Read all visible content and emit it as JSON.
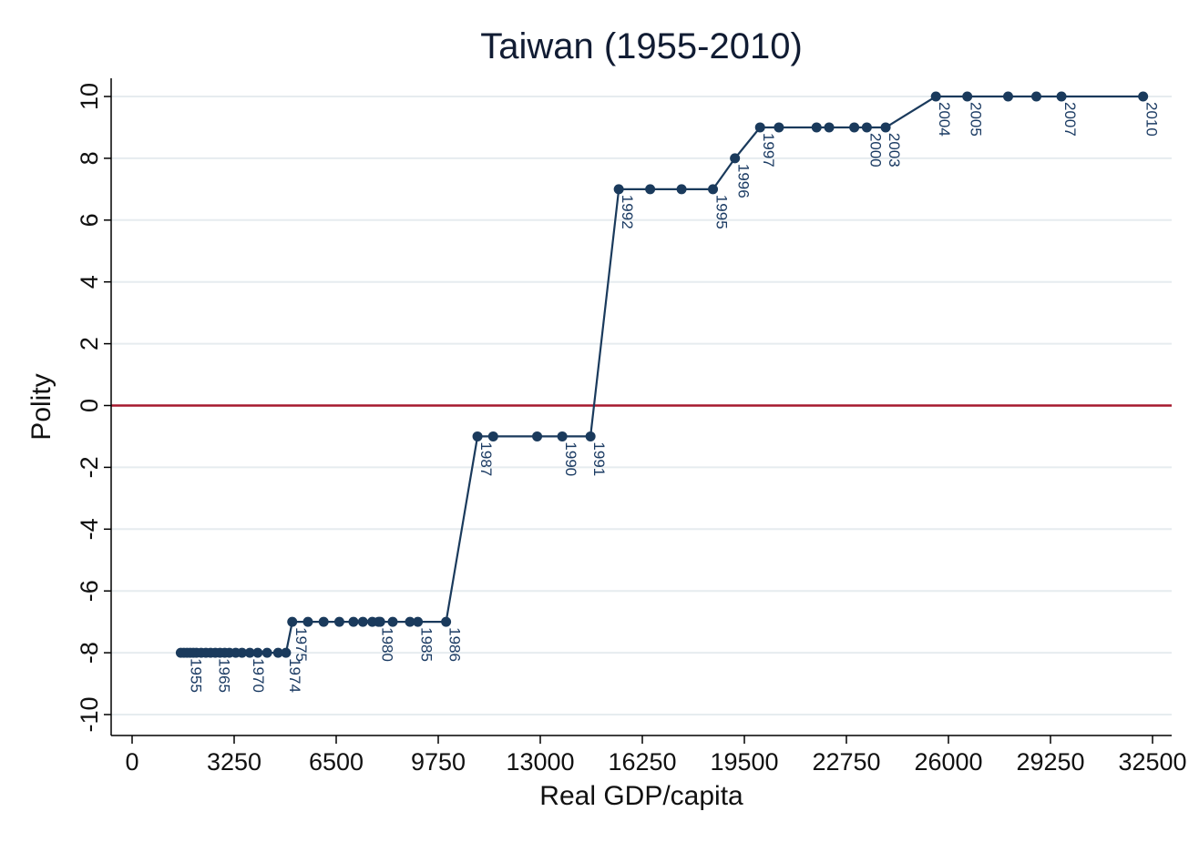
{
  "chart_data": {
    "type": "line",
    "title": "Taiwan (1955-2010)",
    "xlabel": "Real GDP/capita",
    "ylabel": "Polity",
    "xlim": [
      0,
      32500
    ],
    "ylim": [
      -10,
      10
    ],
    "xticks": [
      0,
      3250,
      6500,
      9750,
      13000,
      16250,
      19500,
      22750,
      26000,
      29250,
      32500
    ],
    "yticks": [
      -10,
      -8,
      -6,
      -4,
      -2,
      0,
      2,
      4,
      6,
      8,
      10
    ],
    "grid": "horizontal",
    "reference_line": {
      "y": 0,
      "color": "#a6192e"
    },
    "line_color": "#1a3a5c",
    "x": [
      1550,
      1650,
      1750,
      1850,
      1950,
      2050,
      2200,
      2350,
      2500,
      2650,
      2800,
      2950,
      3100,
      3300,
      3500,
      3750,
      4000,
      4300,
      4650,
      4900,
      5100,
      5600,
      6100,
      6600,
      7050,
      7350,
      7650,
      7850,
      7900,
      8300,
      8850,
      9100,
      10000,
      11000,
      11500,
      12900,
      13700,
      14600,
      15500,
      16500,
      17500,
      18500,
      19200,
      20000,
      20600,
      21800,
      22200,
      23000,
      23400,
      24000,
      25600,
      26600,
      27900,
      28800,
      29600,
      32200
    ],
    "y": [
      -8,
      -8,
      -8,
      -8,
      -8,
      -8,
      -8,
      -8,
      -8,
      -8,
      -8,
      -8,
      -8,
      -8,
      -8,
      -8,
      -8,
      -8,
      -8,
      -8,
      -7,
      -7,
      -7,
      -7,
      -7,
      -7,
      -7,
      -7,
      -7,
      -7,
      -7,
      -7,
      -7,
      -1,
      -1,
      -1,
      -1,
      -1,
      7,
      7,
      7,
      7,
      8,
      9,
      9,
      9,
      9,
      9,
      9,
      9,
      10,
      10,
      10,
      10,
      10,
      10
    ],
    "point_labels": [
      {
        "year": "1955",
        "x": 1750,
        "y": -8
      },
      {
        "year": "1965",
        "x": 2650,
        "y": -8
      },
      {
        "year": "1970",
        "x": 3750,
        "y": -8
      },
      {
        "year": "1974",
        "x": 4900,
        "y": -8
      },
      {
        "year": "1975",
        "x": 5100,
        "y": -7
      },
      {
        "year": "1980",
        "x": 7850,
        "y": -7
      },
      {
        "year": "1985",
        "x": 9100,
        "y": -7
      },
      {
        "year": "1986",
        "x": 10000,
        "y": -7
      },
      {
        "year": "1987",
        "x": 11000,
        "y": -1
      },
      {
        "year": "1990",
        "x": 13700,
        "y": -1
      },
      {
        "year": "1991",
        "x": 14600,
        "y": -1
      },
      {
        "year": "1992",
        "x": 15500,
        "y": 7
      },
      {
        "year": "1995",
        "x": 18500,
        "y": 7
      },
      {
        "year": "1996",
        "x": 19200,
        "y": 8
      },
      {
        "year": "1997",
        "x": 20000,
        "y": 9
      },
      {
        "year": "2000",
        "x": 23400,
        "y": 9
      },
      {
        "year": "2003",
        "x": 24000,
        "y": 9
      },
      {
        "year": "2004",
        "x": 25600,
        "y": 10
      },
      {
        "year": "2005",
        "x": 26600,
        "y": 10
      },
      {
        "year": "2007",
        "x": 29600,
        "y": 10
      },
      {
        "year": "2010",
        "x": 32200,
        "y": 10
      }
    ]
  }
}
